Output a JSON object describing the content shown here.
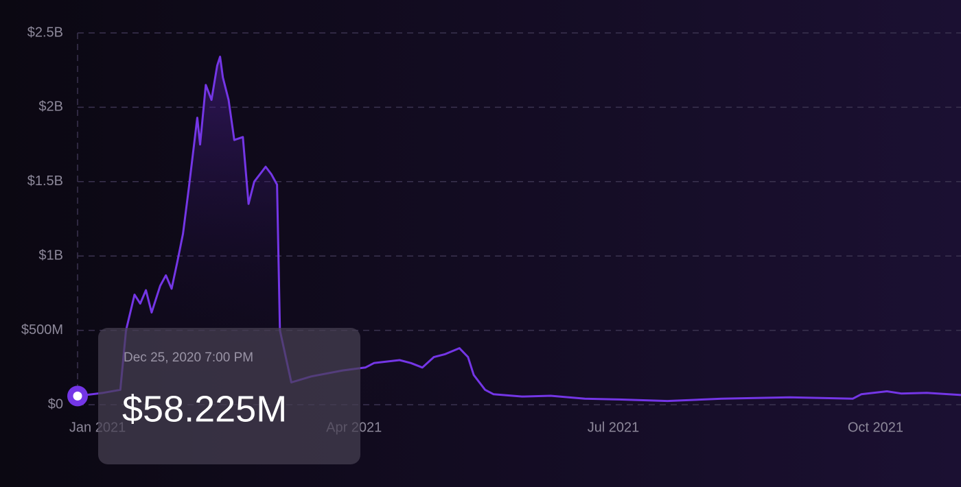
{
  "chart_data": {
    "type": "line",
    "x": [
      "2020-12-25",
      "2021-01-03",
      "2021-01-09",
      "2021-01-11",
      "2021-01-14",
      "2021-01-16",
      "2021-01-18",
      "2021-01-20",
      "2021-01-23",
      "2021-01-25",
      "2021-01-27",
      "2021-01-29",
      "2021-01-31",
      "2021-02-02",
      "2021-02-05",
      "2021-02-06",
      "2021-02-08",
      "2021-02-10",
      "2021-02-12",
      "2021-02-13",
      "2021-02-14",
      "2021-02-16",
      "2021-02-18",
      "2021-02-21",
      "2021-02-23",
      "2021-02-25",
      "2021-02-27",
      "2021-03-01",
      "2021-03-03",
      "2021-03-05",
      "2021-03-06",
      "2021-03-10",
      "2021-03-17",
      "2021-03-28",
      "2021-04-05",
      "2021-04-08",
      "2021-04-17",
      "2021-04-21",
      "2021-04-25",
      "2021-04-29",
      "2021-05-03",
      "2021-05-08",
      "2021-05-11",
      "2021-05-13",
      "2021-05-17",
      "2021-05-20",
      "2021-05-30",
      "2021-06-09",
      "2021-06-21",
      "2021-07-03",
      "2021-07-20",
      "2021-08-08",
      "2021-09-01",
      "2021-09-23",
      "2021-09-26",
      "2021-10-05",
      "2021-10-10",
      "2021-10-19",
      "2021-10-31"
    ],
    "values": [
      58225000,
      80000000,
      100000000,
      500000000,
      740000000,
      680000000,
      770000000,
      620000000,
      800000000,
      870000000,
      780000000,
      960000000,
      1150000000,
      1450000000,
      1930000000,
      1750000000,
      2150000000,
      2050000000,
      2280000000,
      2340000000,
      2200000000,
      2050000000,
      1780000000,
      1800000000,
      1350000000,
      1500000000,
      1550000000,
      1600000000,
      1550000000,
      1480000000,
      500000000,
      150000000,
      190000000,
      230000000,
      250000000,
      280000000,
      300000000,
      280000000,
      250000000,
      320000000,
      340000000,
      380000000,
      320000000,
      200000000,
      100000000,
      70000000,
      55000000,
      60000000,
      40000000,
      35000000,
      25000000,
      40000000,
      50000000,
      40000000,
      70000000,
      90000000,
      75000000,
      80000000,
      65000000
    ],
    "color": "#7436e6",
    "xlim": [
      "2020-12-25",
      "2021-10-31"
    ],
    "xticks": [
      {
        "value": "2021-01-01",
        "label": "Jan 2021"
      },
      {
        "value": "2021-04-01",
        "label": "Apr 2021"
      },
      {
        "value": "2021-07-01",
        "label": "Jul 2021"
      },
      {
        "value": "2021-10-01",
        "label": "Oct 2021"
      }
    ],
    "ylim": [
      0,
      2500000000
    ],
    "yticks": [
      {
        "value": 0,
        "label": "$0"
      },
      {
        "value": 500000000,
        "label": "$500M"
      },
      {
        "value": 1000000000,
        "label": "$1B"
      },
      {
        "value": 1500000000,
        "label": "$1.5B"
      },
      {
        "value": 2000000000,
        "label": "$2B"
      },
      {
        "value": 2500000000,
        "label": "$2.5B"
      }
    ],
    "grid": true,
    "tooltip": {
      "x_label": "Dec 25, 2020 7:00 PM",
      "value": 58225000,
      "label": "$58.225M"
    }
  }
}
